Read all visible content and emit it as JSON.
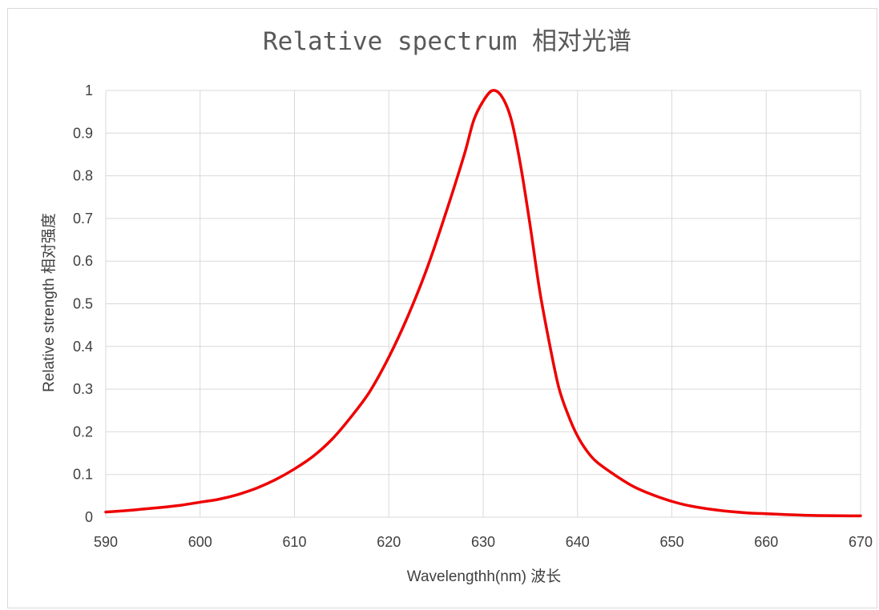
{
  "chart_data": {
    "type": "line",
    "title": "Relative spectrum 相对光谱",
    "xlabel": "Wavelengthh(nm) 波长",
    "ylabel": "Relative strength 相对强度",
    "xlim": [
      590,
      670
    ],
    "ylim": [
      0,
      1
    ],
    "x_ticks": [
      "590",
      "600",
      "610",
      "620",
      "630",
      "640",
      "650",
      "660",
      "670"
    ],
    "y_ticks": [
      "0",
      "0.1",
      "0.2",
      "0.3",
      "0.4",
      "0.5",
      "0.6",
      "0.7",
      "0.8",
      "0.9",
      "1"
    ],
    "grid": true,
    "legend": "none",
    "series": [
      {
        "color": "#ee0000",
        "x": [
          590,
          592,
          594,
          596,
          598,
          600,
          602,
          604,
          606,
          608,
          610,
          612,
          614,
          616,
          618,
          620,
          622,
          624,
          626,
          628,
          629,
          630,
          631,
          632,
          633,
          634,
          635,
          636,
          637,
          638,
          639,
          640,
          641,
          642,
          644,
          646,
          648,
          650,
          652,
          655,
          658,
          660,
          665,
          670
        ],
        "y": [
          0.012,
          0.015,
          0.019,
          0.023,
          0.028,
          0.035,
          0.042,
          0.053,
          0.068,
          0.088,
          0.113,
          0.143,
          0.183,
          0.235,
          0.295,
          0.375,
          0.47,
          0.58,
          0.71,
          0.85,
          0.93,
          0.975,
          1.0,
          0.985,
          0.93,
          0.82,
          0.68,
          0.53,
          0.41,
          0.305,
          0.24,
          0.19,
          0.155,
          0.13,
          0.098,
          0.071,
          0.052,
          0.037,
          0.026,
          0.016,
          0.01,
          0.008,
          0.004,
          0.003
        ]
      }
    ]
  }
}
